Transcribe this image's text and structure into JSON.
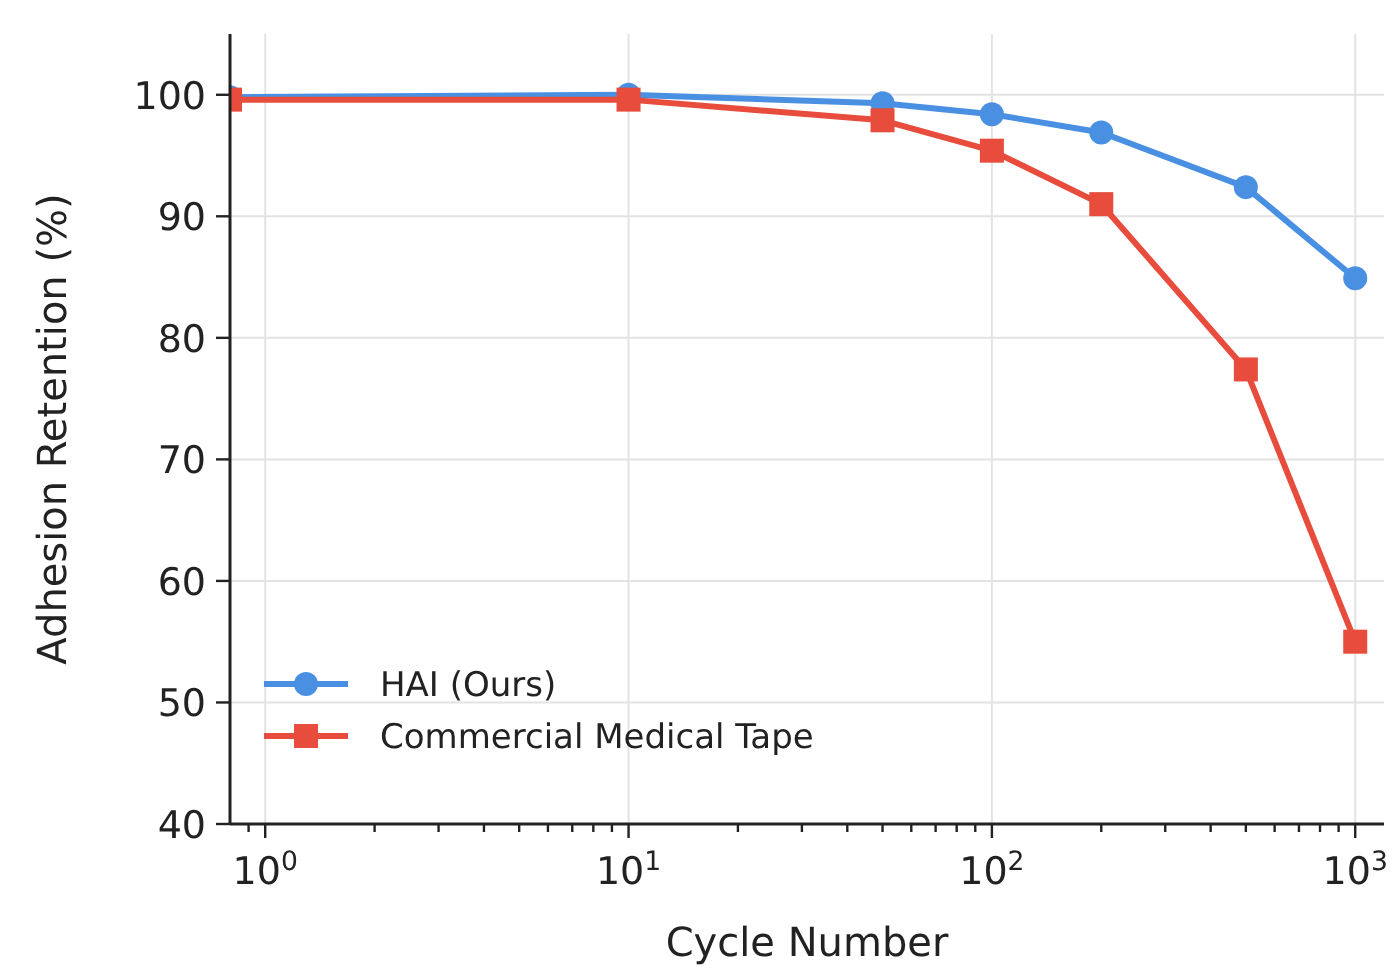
{
  "chart_data": {
    "type": "line",
    "xlabel": "Cycle Number",
    "ylabel": "Adhesion Retention (%)",
    "log": "x",
    "x": [
      0.8,
      10,
      50,
      100,
      200,
      500,
      1000
    ],
    "series": [
      {
        "name": "HAI (Ours)",
        "color": "#4a90e2",
        "marker": "circle",
        "values": [
          99.8,
          100,
          99.3,
          98.4,
          96.9,
          92.4,
          84.9
        ]
      },
      {
        "name": "Commercial Medical Tape",
        "color": "#e74c3c",
        "marker": "square",
        "values": [
          99.6,
          99.6,
          97.9,
          95.4,
          91,
          77.4,
          55
        ]
      }
    ],
    "xlim": [
      0.8,
      1200
    ],
    "xticks": [
      {
        "value": 0.9,
        "label": null
      },
      {
        "value": 1,
        "label": "10$^{0}$"
      },
      {
        "value": 2,
        "label": null
      },
      {
        "value": 3,
        "label": null
      },
      {
        "value": 4,
        "label": null
      },
      {
        "value": 5,
        "label": null
      },
      {
        "value": 6,
        "label": null
      },
      {
        "value": 7,
        "label": null
      },
      {
        "value": 8,
        "label": null
      },
      {
        "value": 9,
        "label": null
      },
      {
        "value": 10,
        "label": "10$^{1}$"
      },
      {
        "value": 20,
        "label": null
      },
      {
        "value": 30,
        "label": null
      },
      {
        "value": 40,
        "label": null
      },
      {
        "value": 50,
        "label": null
      },
      {
        "value": 60,
        "label": null
      },
      {
        "value": 70,
        "label": null
      },
      {
        "value": 80,
        "label": null
      },
      {
        "value": 90,
        "label": null
      },
      {
        "value": 100,
        "label": "10$^{2}$"
      },
      {
        "value": 200,
        "label": null
      },
      {
        "value": 300,
        "label": null
      },
      {
        "value": 400,
        "label": null
      },
      {
        "value": 500,
        "label": null
      },
      {
        "value": 600,
        "label": null
      },
      {
        "value": 700,
        "label": null
      },
      {
        "value": 800,
        "label": null
      },
      {
        "value": 900,
        "label": null
      },
      {
        "value": 1000,
        "label": "10$^{3}$"
      }
    ],
    "ylim": [
      40,
      105
    ],
    "yticks": [
      40,
      50,
      60,
      70,
      80,
      90,
      100
    ],
    "grid": true,
    "legend": "bottom left",
    "line_style": "solid"
  }
}
